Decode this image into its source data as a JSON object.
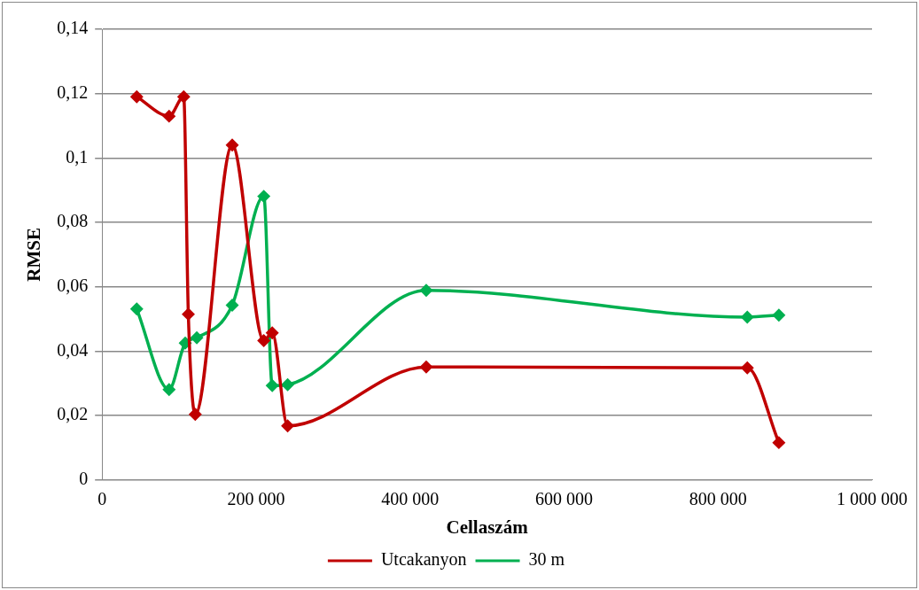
{
  "chart_data": {
    "type": "line",
    "xlabel": "Cellaszám",
    "ylabel": "RMSE",
    "xlim": [
      0,
      1000000
    ],
    "xticks": [
      {
        "value": 0,
        "label": "0"
      },
      {
        "value": 200000,
        "label": "200 000"
      },
      {
        "value": 400000,
        "label": "400 000"
      },
      {
        "value": 600000,
        "label": "600 000"
      },
      {
        "value": 800000,
        "label": "800 000"
      },
      {
        "value": 1000000,
        "label": "1 000 000"
      }
    ],
    "ylim": [
      0,
      0.14
    ],
    "yticks": [
      {
        "value": 0,
        "label": "0"
      },
      {
        "value": 0.02,
        "label": "0,02"
      },
      {
        "value": 0.04,
        "label": "0,04"
      },
      {
        "value": 0.06,
        "label": "0,06"
      },
      {
        "value": 0.08,
        "label": "0,08"
      },
      {
        "value": 0.1,
        "label": "0,1"
      },
      {
        "value": 0.12,
        "label": "0,12"
      },
      {
        "value": 0.14,
        "label": "0,14"
      }
    ],
    "grid": "y",
    "legend": "bottom",
    "marker": "diamond",
    "line_style": "solid",
    "series": [
      {
        "name": "Utcakanyon",
        "color": "#c00000",
        "x": [
          45000,
          87000,
          106000,
          112000,
          121000,
          169000,
          210000,
          221000,
          241000,
          421000,
          838000,
          879000
        ],
        "values": [
          0.119,
          0.113,
          0.119,
          0.0515,
          0.0204,
          0.104,
          0.0433,
          0.0457,
          0.0168,
          0.0351,
          0.0348,
          0.0116
        ]
      },
      {
        "name": "30 m",
        "color": "#00b050",
        "x": [
          45000,
          87000,
          108000,
          123000,
          169000,
          210000,
          221000,
          241000,
          421000,
          838000,
          879000
        ],
        "values": [
          0.0531,
          0.0281,
          0.0425,
          0.0442,
          0.0543,
          0.0881,
          0.0293,
          0.0296,
          0.0589,
          0.0506,
          0.0512
        ]
      }
    ]
  }
}
